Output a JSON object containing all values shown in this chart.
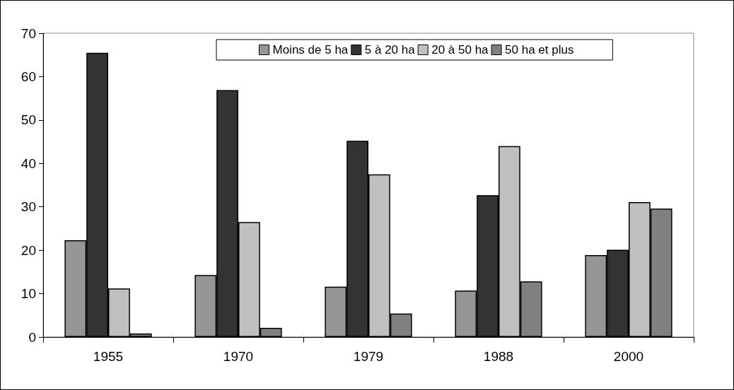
{
  "chart_data": {
    "type": "bar",
    "categories": [
      "1955",
      "1970",
      "1979",
      "1988",
      "2000"
    ],
    "series": [
      {
        "name": "Moins de 5 ha",
        "color": "#969696",
        "values": [
          22.3,
          14.3,
          11.6,
          10.7,
          18.9
        ]
      },
      {
        "name": "5 à 20 ha",
        "color": "#333333",
        "values": [
          65.5,
          56.9,
          45.2,
          32.7,
          20.1
        ]
      },
      {
        "name": "20 à 50 ha",
        "color": "#c0c0c0",
        "values": [
          11.2,
          26.5,
          37.5,
          44.0,
          31.1
        ]
      },
      {
        "name": "50 ha et plus",
        "color": "#808080",
        "values": [
          0.8,
          2.1,
          5.4,
          12.8,
          29.6
        ]
      }
    ],
    "ylim": [
      0,
      70
    ],
    "yticks": [
      0,
      10,
      20,
      30,
      40,
      50,
      60,
      70
    ],
    "grid": false,
    "legend": "top"
  }
}
